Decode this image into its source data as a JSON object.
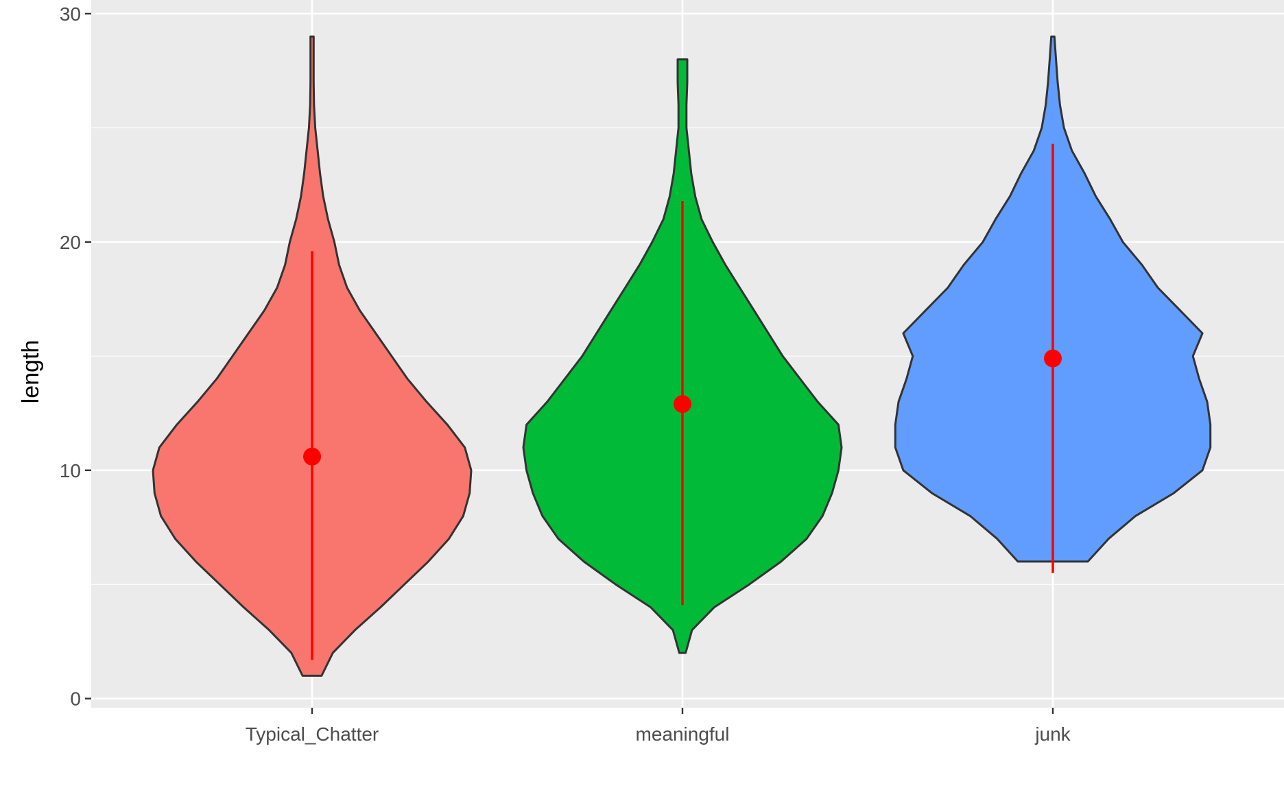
{
  "chart_data": {
    "type": "violin",
    "title": "",
    "xlabel": "",
    "ylabel": "length",
    "ylim": [
      -0.4,
      30.6
    ],
    "y_ticks": [
      0,
      10,
      20,
      30
    ],
    "y_minor_ticks": [
      5,
      15,
      25
    ],
    "grid": true,
    "legend": "none",
    "categories": [
      "Typical_Chatter",
      "meaningful",
      "junk"
    ],
    "series": [
      {
        "category": "Typical_Chatter",
        "color": "#F8766D",
        "min": 1,
        "max": 29,
        "mean": 10.6,
        "interval": [
          1.7,
          19.6
        ],
        "density": [
          [
            1,
            0.06
          ],
          [
            2,
            0.13
          ],
          [
            3,
            0.27
          ],
          [
            4,
            0.43
          ],
          [
            5,
            0.58
          ],
          [
            6,
            0.73
          ],
          [
            7,
            0.86
          ],
          [
            8,
            0.95
          ],
          [
            9,
            0.99
          ],
          [
            10,
            1.0
          ],
          [
            11,
            0.96
          ],
          [
            12,
            0.85
          ],
          [
            13,
            0.72
          ],
          [
            14,
            0.6
          ],
          [
            15,
            0.5
          ],
          [
            16,
            0.4
          ],
          [
            17,
            0.3
          ],
          [
            18,
            0.22
          ],
          [
            19,
            0.17
          ],
          [
            20,
            0.14
          ],
          [
            21,
            0.1
          ],
          [
            22,
            0.07
          ],
          [
            23,
            0.05
          ],
          [
            24,
            0.035
          ],
          [
            25,
            0.02
          ],
          [
            26,
            0.012
          ],
          [
            27,
            0.01
          ],
          [
            28,
            0.01
          ],
          [
            29,
            0.01
          ]
        ]
      },
      {
        "category": "meaningful",
        "color": "#00BA38",
        "min": 2,
        "max": 28,
        "mean": 12.9,
        "interval": [
          4.1,
          21.8
        ],
        "density": [
          [
            2,
            0.02
          ],
          [
            3,
            0.06
          ],
          [
            4,
            0.2
          ],
          [
            5,
            0.42
          ],
          [
            6,
            0.62
          ],
          [
            7,
            0.78
          ],
          [
            8,
            0.88
          ],
          [
            9,
            0.94
          ],
          [
            10,
            0.98
          ],
          [
            11,
            1.0
          ],
          [
            12,
            0.98
          ],
          [
            13,
            0.85
          ],
          [
            14,
            0.74
          ],
          [
            15,
            0.63
          ],
          [
            16,
            0.54
          ],
          [
            17,
            0.45
          ],
          [
            18,
            0.36
          ],
          [
            19,
            0.27
          ],
          [
            20,
            0.19
          ],
          [
            21,
            0.12
          ],
          [
            22,
            0.08
          ],
          [
            23,
            0.055
          ],
          [
            24,
            0.04
          ],
          [
            25,
            0.025
          ],
          [
            26,
            0.025
          ],
          [
            27,
            0.03
          ],
          [
            28,
            0.03
          ]
        ]
      },
      {
        "category": "junk",
        "color": "#619CFF",
        "min": 6,
        "max": 29,
        "mean": 14.9,
        "interval": [
          5.5,
          24.3
        ],
        "density": [
          [
            6,
            0.22
          ],
          [
            7,
            0.35
          ],
          [
            8,
            0.52
          ],
          [
            9,
            0.76
          ],
          [
            10,
            0.94
          ],
          [
            11,
            0.99
          ],
          [
            12,
            0.99
          ],
          [
            13,
            0.97
          ],
          [
            14,
            0.92
          ],
          [
            15,
            0.88
          ],
          [
            16,
            0.94
          ],
          [
            17,
            0.8
          ],
          [
            18,
            0.66
          ],
          [
            19,
            0.56
          ],
          [
            20,
            0.44
          ],
          [
            21,
            0.36
          ],
          [
            22,
            0.27
          ],
          [
            23,
            0.2
          ],
          [
            24,
            0.12
          ],
          [
            25,
            0.07
          ],
          [
            26,
            0.045
          ],
          [
            27,
            0.03
          ],
          [
            28,
            0.02
          ],
          [
            29,
            0.01
          ]
        ]
      }
    ],
    "summary_color": "#FF0000"
  }
}
